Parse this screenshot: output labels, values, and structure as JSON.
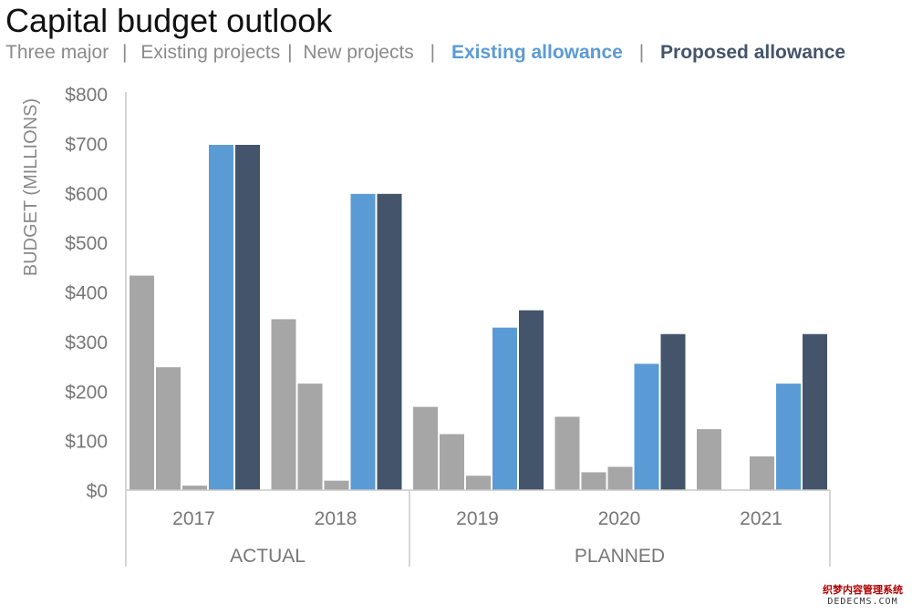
{
  "colors": {
    "gray": "#a6a6a6",
    "existing_allowance": "#5b9bd5",
    "proposed_allowance": "#44546a",
    "axis": "#c8c8c8",
    "tick_text": "#777777"
  },
  "legend": {
    "items": [
      "Three major",
      "Existing projects",
      "New projects",
      "Existing allowance",
      "Proposed allowance"
    ],
    "separators": [
      "|",
      "|",
      "|",
      "|"
    ]
  },
  "watermark": {
    "line1": "织梦内容管理系统",
    "line2": "DEDECMS.COM"
  },
  "chart_data": {
    "type": "bar",
    "title": "Capital budget outlook",
    "ylabel": "BUDGET (MILLIONS)",
    "xlabel": "",
    "ylim": [
      0,
      800
    ],
    "yticks": [
      0,
      100,
      200,
      300,
      400,
      500,
      600,
      700,
      800
    ],
    "ytick_labels": [
      "$0",
      "$100",
      "$200",
      "$300",
      "$400",
      "$500",
      "$600",
      "$700",
      "$800"
    ],
    "categories": [
      "2017",
      "2018",
      "2019",
      "2020",
      "2021"
    ],
    "groups": [
      {
        "label": "ACTUAL",
        "categories": [
          "2017",
          "2018"
        ]
      },
      {
        "label": "PLANNED",
        "categories": [
          "2019",
          "2020",
          "2021"
        ]
      }
    ],
    "series": [
      {
        "name": "Three major",
        "color": "#a6a6a6",
        "values": [
          433,
          345,
          168,
          148,
          123
        ]
      },
      {
        "name": "Existing projects",
        "color": "#a6a6a6",
        "values": [
          248,
          215,
          113,
          36,
          0
        ]
      },
      {
        "name": "New projects",
        "color": "#a6a6a6",
        "values": [
          9,
          19,
          29,
          47,
          68
        ]
      },
      {
        "name": "Existing allowance",
        "color": "#5b9bd5",
        "values": [
          697,
          598,
          328,
          255,
          215
        ]
      },
      {
        "name": "Proposed allowance",
        "color": "#44546a",
        "values": [
          697,
          598,
          363,
          315,
          315
        ]
      }
    ],
    "grid": false,
    "legend_position": "top"
  }
}
